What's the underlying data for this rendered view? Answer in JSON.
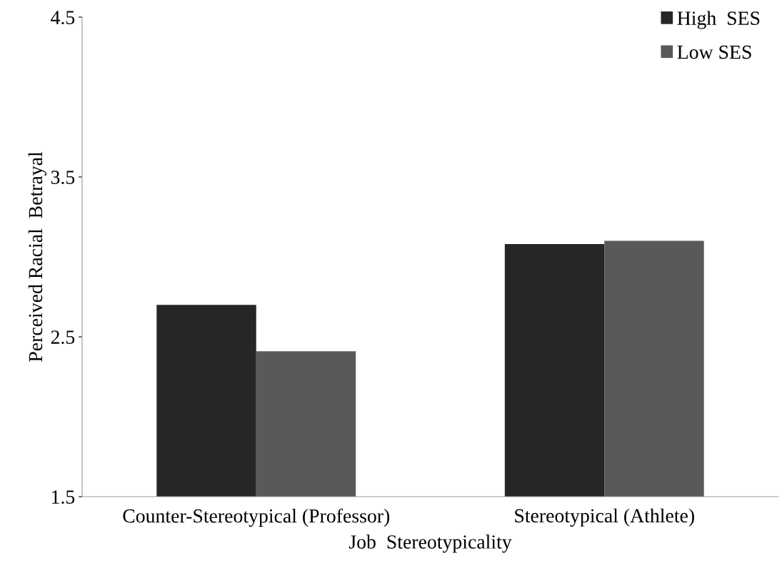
{
  "chart_data": {
    "type": "bar",
    "xlabel": "Job  Stereotypicality",
    "ylabel": "Perceived Racial  Betrayal",
    "categories": [
      "Counter-Stereotypical (Professor)",
      "Stereotypical (Athlete)"
    ],
    "series": [
      {
        "name": "High  SES",
        "color": "#262626",
        "values": [
          2.7,
          3.08
        ]
      },
      {
        "name": "Low SES",
        "color": "#595959",
        "values": [
          2.41,
          3.1
        ]
      }
    ],
    "ylim": [
      1.5,
      4.5
    ],
    "yticks": [
      1.5,
      2.5,
      3.5,
      4.5
    ],
    "grid": false,
    "legend": "top right"
  }
}
